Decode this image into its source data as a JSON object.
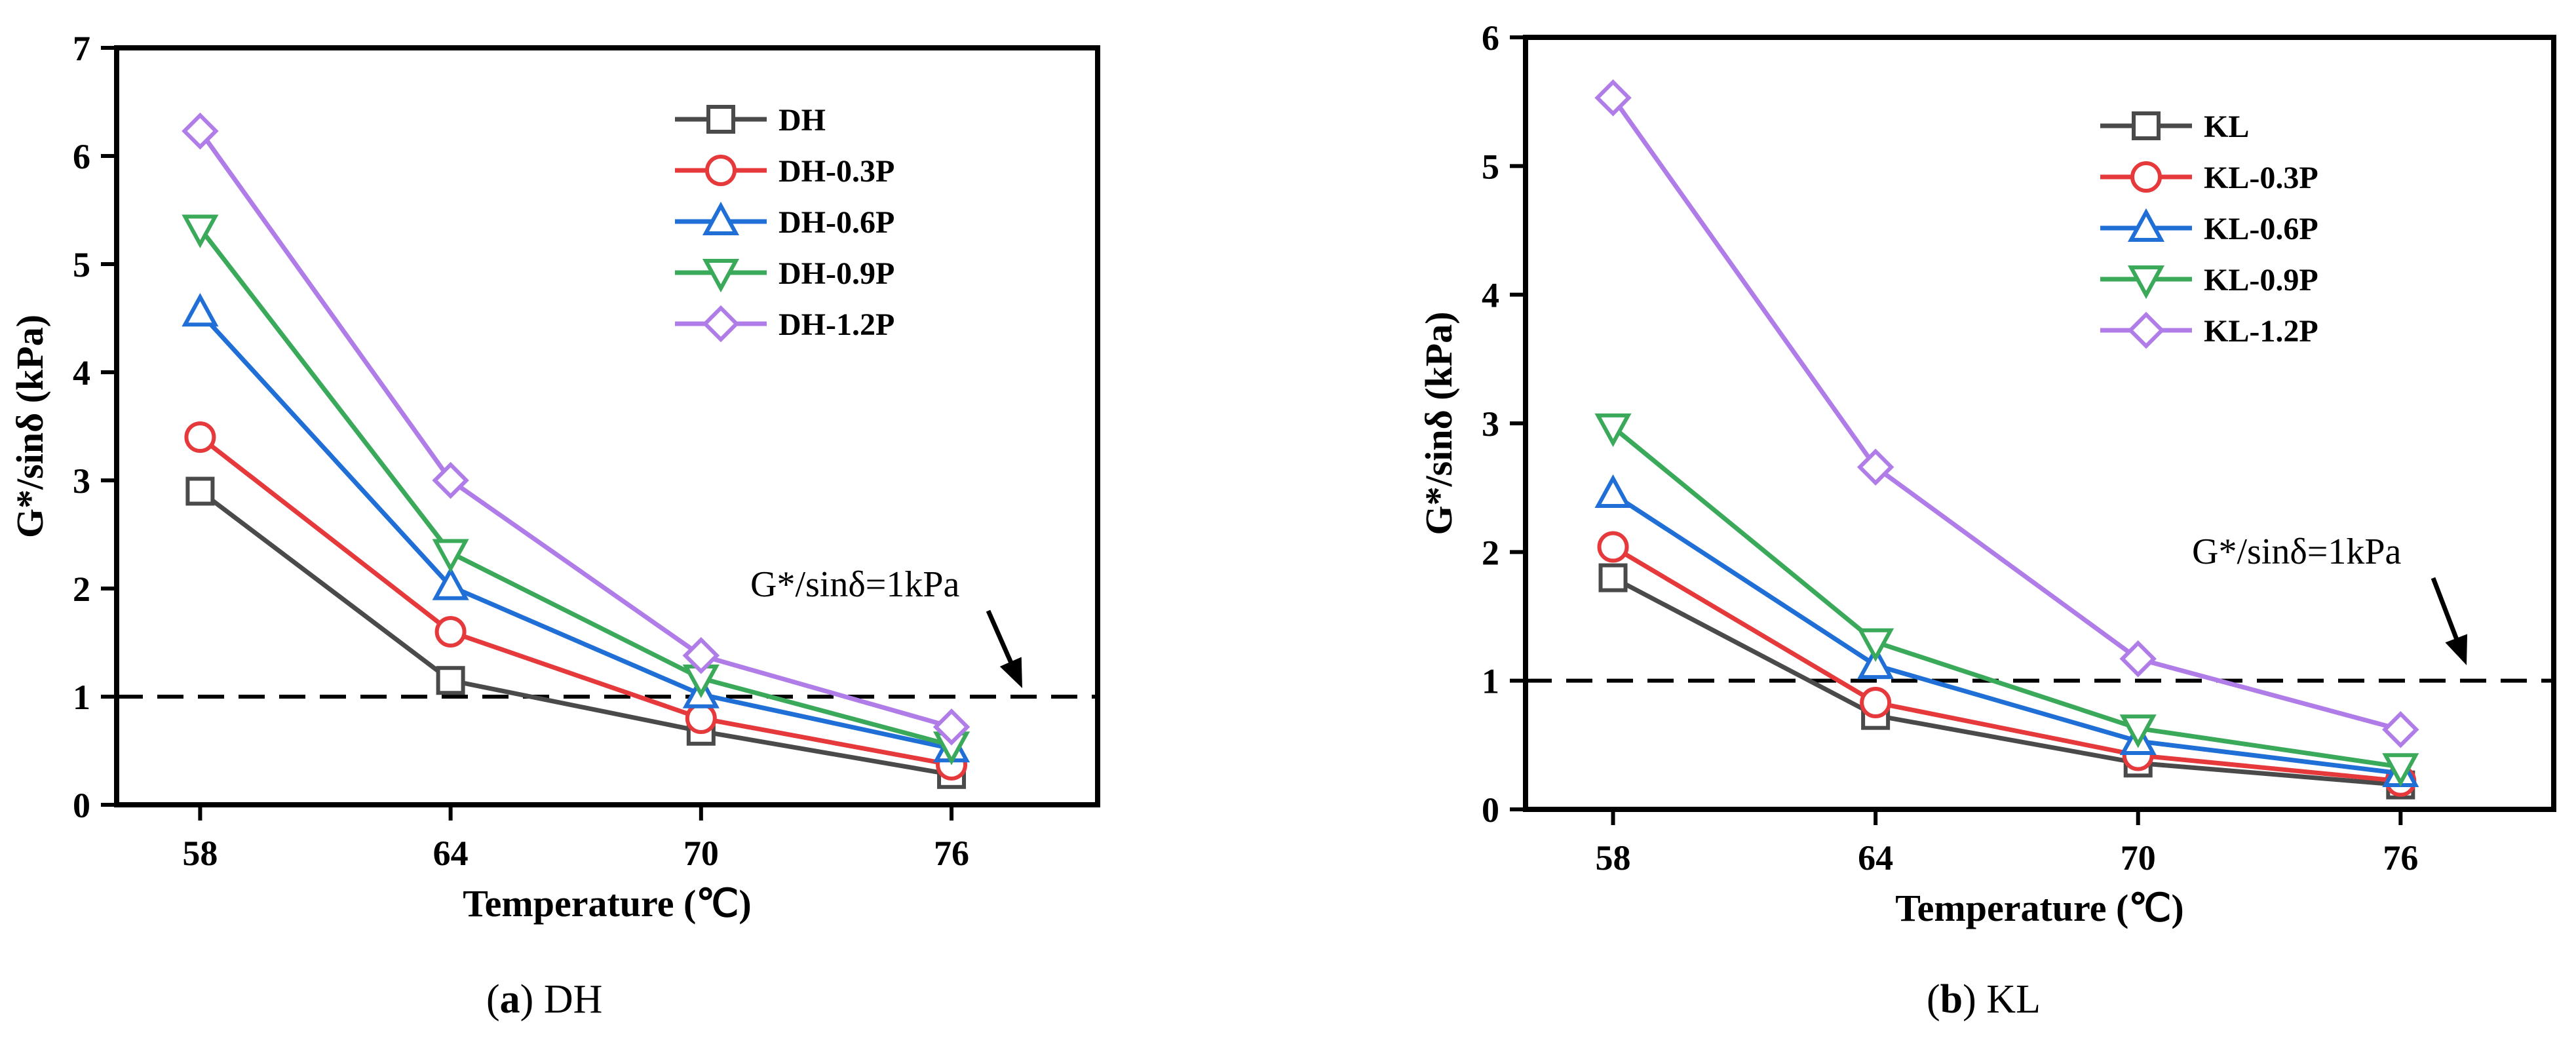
{
  "chart_data": [
    {
      "type": "line",
      "title": "",
      "xlabel": "Temperature (℃)",
      "ylabel": "G*/sinδ (kPa)",
      "x": [
        58,
        64,
        70,
        76
      ],
      "x_ticks": [
        "58",
        "64",
        "70",
        "76"
      ],
      "y_ticks": [
        "0",
        "1",
        "2",
        "3",
        "4",
        "5",
        "6",
        "7"
      ],
      "ylim": [
        0,
        7
      ],
      "legend_position": "top-right",
      "caption": {
        "label": "a",
        "name": "DH"
      },
      "reference_line": {
        "y": 1,
        "label": "G*/sinδ=1kPa"
      },
      "series": [
        {
          "name": "DH",
          "values": [
            2.9,
            1.15,
            0.68,
            0.28
          ],
          "color": "#4a4a4a",
          "marker": "square"
        },
        {
          "name": "DH-0.3P",
          "values": [
            3.4,
            1.6,
            0.8,
            0.37
          ],
          "color": "#e5393b",
          "marker": "circle"
        },
        {
          "name": "DH-0.6P",
          "values": [
            4.55,
            2.02,
            1.02,
            0.52
          ],
          "color": "#1f6fd6",
          "marker": "triangle-up"
        },
        {
          "name": "DH-0.9P",
          "values": [
            5.33,
            2.33,
            1.17,
            0.55
          ],
          "color": "#3aaa5a",
          "marker": "triangle-down"
        },
        {
          "name": "DH-1.2P",
          "values": [
            6.23,
            3.0,
            1.38,
            0.72
          ],
          "color": "#b07ce8",
          "marker": "diamond"
        }
      ]
    },
    {
      "type": "line",
      "title": "",
      "xlabel": "Temperature (℃)",
      "ylabel": "G*/sinδ (kPa)",
      "x": [
        58,
        64,
        70,
        76
      ],
      "x_ticks": [
        "58",
        "64",
        "70",
        "76"
      ],
      "y_ticks": [
        "0",
        "1",
        "2",
        "3",
        "4",
        "5",
        "6"
      ],
      "ylim": [
        0,
        6
      ],
      "legend_position": "top-right",
      "caption": {
        "label": "b",
        "name": "KL"
      },
      "reference_line": {
        "y": 1,
        "label": "G*/sinδ=1kPa"
      },
      "series": [
        {
          "name": "KL",
          "values": [
            1.8,
            0.73,
            0.36,
            0.19
          ],
          "color": "#4a4a4a",
          "marker": "square"
        },
        {
          "name": "KL-0.3P",
          "values": [
            2.04,
            0.83,
            0.42,
            0.22
          ],
          "color": "#e5393b",
          "marker": "circle"
        },
        {
          "name": "KL-0.6P",
          "values": [
            2.45,
            1.12,
            0.53,
            0.28
          ],
          "color": "#1f6fd6",
          "marker": "triangle-up"
        },
        {
          "name": "KL-0.9P",
          "values": [
            2.97,
            1.3,
            0.63,
            0.33
          ],
          "color": "#3aaa5a",
          "marker": "triangle-down"
        },
        {
          "name": "KL-1.2P",
          "values": [
            5.53,
            2.66,
            1.17,
            0.62
          ],
          "color": "#b07ce8",
          "marker": "diamond"
        }
      ]
    }
  ]
}
